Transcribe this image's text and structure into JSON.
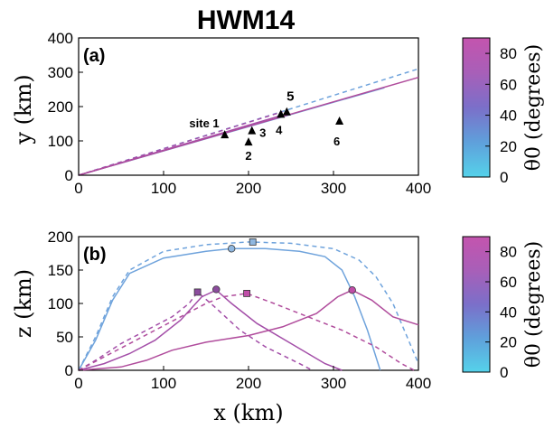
{
  "title": "HWM14",
  "colors": {
    "blue": "#6fa3dc",
    "purple": "#a34ea8",
    "magenta": "#b04c9c",
    "marker_blue": "#8fb7e0",
    "marker_purple": "#8c4c9e",
    "marker_magenta": "#c04ea8"
  },
  "chart_data": [
    {
      "panel": "(a)",
      "type": "line",
      "xlabel": "y (km)",
      "ylabel_text": "y (km)",
      "x_ticks": [
        "0",
        "100",
        "200",
        "300",
        "400"
      ],
      "y_ticks": [
        "0",
        "100",
        "200",
        "300",
        "400"
      ],
      "xlim": [
        0,
        400
      ],
      "ylim": [
        0,
        400
      ],
      "series": [
        {
          "color": "blue",
          "dash": true,
          "points": [
            [
              0,
              0
            ],
            [
              400,
              310
            ]
          ]
        },
        {
          "color": "blue",
          "dash": false,
          "points": [
            [
              0,
              0
            ],
            [
              360,
              255
            ]
          ]
        },
        {
          "color": "purple",
          "dash": true,
          "points": [
            [
              0,
              0
            ],
            [
              240,
              185
            ]
          ]
        },
        {
          "color": "purple",
          "dash": false,
          "points": [
            [
              0,
              0
            ],
            [
              240,
              175
            ]
          ]
        },
        {
          "color": "magenta",
          "dash": false,
          "points": [
            [
              0,
              0
            ],
            [
              400,
              285
            ]
          ]
        }
      ],
      "sites": [
        {
          "label": "site 1",
          "x": 172,
          "y": 118,
          "color": "#000000"
        },
        {
          "label": "2",
          "x": 200,
          "y": 97,
          "color": "#000000"
        },
        {
          "label": "3",
          "x": 204,
          "y": 130,
          "color": "#000000"
        },
        {
          "label": "4",
          "x": 238,
          "y": 178,
          "color": "#000000"
        },
        {
          "label": "5",
          "x": 245,
          "y": 185,
          "color": "#e31a1c"
        },
        {
          "label": "6",
          "x": 307,
          "y": 158,
          "color": "#000000"
        }
      ]
    },
    {
      "panel": "(b)",
      "type": "line",
      "xlabel": "x (km)",
      "ylabel": "z (km)",
      "x_ticks": [
        "0",
        "100",
        "200",
        "300",
        "400"
      ],
      "y_ticks": [
        "0",
        "50",
        "100",
        "150",
        "200"
      ],
      "xlim": [
        0,
        400
      ],
      "ylim": [
        0,
        200
      ],
      "series": [
        {
          "color": "blue",
          "dash": true,
          "points": [
            [
              0,
              0
            ],
            [
              20,
              50
            ],
            [
              40,
              110
            ],
            [
              60,
              150
            ],
            [
              100,
              178
            ],
            [
              150,
              188
            ],
            [
              200,
              192
            ],
            [
              250,
              190
            ],
            [
              300,
              182
            ],
            [
              330,
              165
            ],
            [
              350,
              140
            ],
            [
              370,
              100
            ],
            [
              390,
              40
            ],
            [
              400,
              10
            ]
          ]
        },
        {
          "color": "blue",
          "dash": false,
          "points": [
            [
              0,
              0
            ],
            [
              20,
              45
            ],
            [
              40,
              105
            ],
            [
              60,
              145
            ],
            [
              100,
              168
            ],
            [
              150,
              178
            ],
            [
              180,
              182
            ],
            [
              220,
              182
            ],
            [
              260,
              178
            ],
            [
              290,
              170
            ],
            [
              310,
              150
            ],
            [
              325,
              110
            ],
            [
              340,
              60
            ],
            [
              355,
              0
            ]
          ]
        },
        {
          "color": "purple",
          "dash": true,
          "points": [
            [
              0,
              0
            ],
            [
              20,
              15
            ],
            [
              50,
              40
            ],
            [
              80,
              60
            ],
            [
              110,
              80
            ],
            [
              130,
              100
            ],
            [
              140,
              117
            ],
            [
              160,
              95
            ],
            [
              190,
              60
            ],
            [
              220,
              35
            ],
            [
              260,
              10
            ],
            [
              275,
              0
            ]
          ]
        },
        {
          "color": "purple",
          "dash": false,
          "points": [
            [
              0,
              0
            ],
            [
              30,
              10
            ],
            [
              60,
              25
            ],
            [
              90,
              45
            ],
            [
              120,
              75
            ],
            [
              145,
              110
            ],
            [
              162,
              120
            ],
            [
              180,
              100
            ],
            [
              210,
              70
            ],
            [
              250,
              40
            ],
            [
              290,
              10
            ],
            [
              310,
              0
            ]
          ]
        },
        {
          "color": "magenta",
          "dash": true,
          "points": [
            [
              0,
              0
            ],
            [
              30,
              20
            ],
            [
              60,
              40
            ],
            [
              90,
              60
            ],
            [
              120,
              80
            ],
            [
              150,
              100
            ],
            [
              170,
              110
            ],
            [
              198,
              115
            ],
            [
              230,
              100
            ],
            [
              270,
              80
            ],
            [
              310,
              60
            ],
            [
              350,
              35
            ],
            [
              380,
              10
            ],
            [
              395,
              0
            ]
          ]
        },
        {
          "color": "magenta",
          "dash": false,
          "points": [
            [
              0,
              0
            ],
            [
              50,
              5
            ],
            [
              80,
              15
            ],
            [
              110,
              30
            ],
            [
              150,
              42
            ],
            [
              200,
              52
            ],
            [
              240,
              65
            ],
            [
              280,
              85
            ],
            [
              305,
              110
            ],
            [
              322,
              120
            ],
            [
              345,
              105
            ],
            [
              370,
              80
            ],
            [
              400,
              68
            ]
          ]
        }
      ],
      "markers": [
        {
          "shape": "square",
          "color": "marker_blue",
          "x": 205,
          "y": 192
        },
        {
          "shape": "circle",
          "color": "marker_blue",
          "x": 180,
          "y": 182
        },
        {
          "shape": "square",
          "color": "marker_purple",
          "x": 140,
          "y": 117
        },
        {
          "shape": "circle",
          "color": "marker_purple",
          "x": 162,
          "y": 121
        },
        {
          "shape": "square",
          "color": "marker_magenta",
          "x": 198,
          "y": 115
        },
        {
          "shape": "circle",
          "color": "marker_magenta",
          "x": 322,
          "y": 120
        }
      ]
    }
  ],
  "colorbar": {
    "label": "θ0 (degrees)",
    "ticks": [
      "0",
      "20",
      "40",
      "60",
      "80"
    ],
    "range": [
      0,
      90
    ],
    "gradient": [
      "#55d2ea",
      "#5fa0db",
      "#7b6fc9",
      "#a85fb8",
      "#c454ae"
    ]
  },
  "labels": {
    "panel_a": "(a)",
    "panel_b": "(b)",
    "y_axis_a": "y (km)",
    "z_axis_b": "z (km)",
    "x_axis_b": "x (km)"
  }
}
